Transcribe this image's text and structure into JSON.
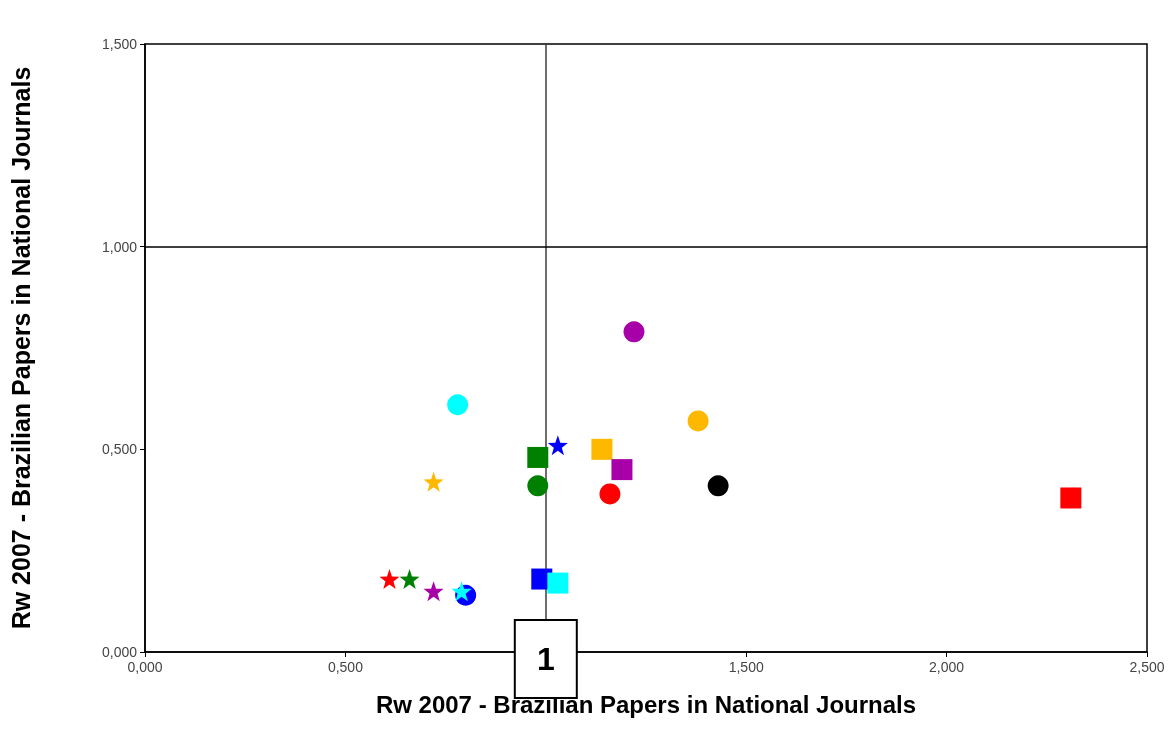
{
  "chart_data": {
    "type": "scatter",
    "xlabel": "Rw 2007 - Brazilian Papers in National Journals",
    "ylabel": "Rw 2007 - Brazilian Papers in National Journals",
    "xlim": [
      0,
      2.5
    ],
    "xticks": [
      {
        "value": 0,
        "label": "0,000"
      },
      {
        "value": 0.5,
        "label": "0,500"
      },
      {
        "value": 1,
        "label": null
      },
      {
        "value": 1.5,
        "label": "1,500"
      },
      {
        "value": 2,
        "label": "2,000"
      },
      {
        "value": 2.5,
        "label": "2,500"
      }
    ],
    "ylim": [
      0,
      1.5
    ],
    "yticks": [
      {
        "value": 0,
        "label": "0,000"
      },
      {
        "value": 0.5,
        "label": "0,500"
      },
      {
        "value": 1,
        "label": "1,000"
      },
      {
        "value": 1.5,
        "label": "1,500"
      }
    ],
    "ref_lines": [
      {
        "axis": "x",
        "value": 1,
        "label": null,
        "color": "#3c3c3c"
      },
      {
        "axis": "y",
        "value": 1,
        "label": null,
        "color": "#000000"
      }
    ],
    "annotations": [
      {
        "text": "1",
        "x": 1,
        "y": 0
      }
    ],
    "grid": false,
    "series": [
      {
        "color": "#a800a8",
        "marker": "circle",
        "x": [
          1.22
        ],
        "values": [
          0.79
        ]
      },
      {
        "color": "#00ffff",
        "marker": "circle",
        "x": [
          0.78
        ],
        "values": [
          0.61
        ]
      },
      {
        "color": "#ffb800",
        "marker": "circle",
        "x": [
          1.38
        ],
        "values": [
          0.57
        ]
      },
      {
        "color": "#0000ff",
        "marker": "star",
        "x": [
          1.03
        ],
        "values": [
          0.51
        ]
      },
      {
        "color": "#008000",
        "marker": "square",
        "x": [
          0.98
        ],
        "values": [
          0.48
        ]
      },
      {
        "color": "#ffb800",
        "marker": "square",
        "x": [
          1.14
        ],
        "values": [
          0.5
        ]
      },
      {
        "color": "#a800a8",
        "marker": "square",
        "x": [
          1.19
        ],
        "values": [
          0.45
        ]
      },
      {
        "color": "#ffb800",
        "marker": "star",
        "x": [
          0.72
        ],
        "values": [
          0.42
        ]
      },
      {
        "color": "#008000",
        "marker": "circle",
        "x": [
          0.98
        ],
        "values": [
          0.41
        ]
      },
      {
        "color": "#ff0000",
        "marker": "circle",
        "x": [
          1.16
        ],
        "values": [
          0.39
        ]
      },
      {
        "color": "#000000",
        "marker": "circle",
        "x": [
          1.43
        ],
        "values": [
          0.41
        ]
      },
      {
        "color": "#ff0000",
        "marker": "square",
        "x": [
          2.31
        ],
        "values": [
          0.38
        ]
      },
      {
        "color": "#ff0000",
        "marker": "star",
        "x": [
          0.61
        ],
        "values": [
          0.18
        ]
      },
      {
        "color": "#008000",
        "marker": "star",
        "x": [
          0.66
        ],
        "values": [
          0.18
        ]
      },
      {
        "color": "#a800a8",
        "marker": "star",
        "x": [
          0.72
        ],
        "values": [
          0.15
        ]
      },
      {
        "color": "#0000ff",
        "marker": "circle",
        "x": [
          0.8
        ],
        "values": [
          0.14
        ]
      },
      {
        "color": "#00ffff",
        "marker": "star",
        "x": [
          0.79
        ],
        "values": [
          0.15
        ]
      },
      {
        "color": "#0000ff",
        "marker": "square",
        "x": [
          0.99
        ],
        "values": [
          0.18
        ]
      },
      {
        "color": "#00ffff",
        "marker": "square",
        "x": [
          1.03
        ],
        "values": [
          0.17
        ]
      }
    ]
  }
}
